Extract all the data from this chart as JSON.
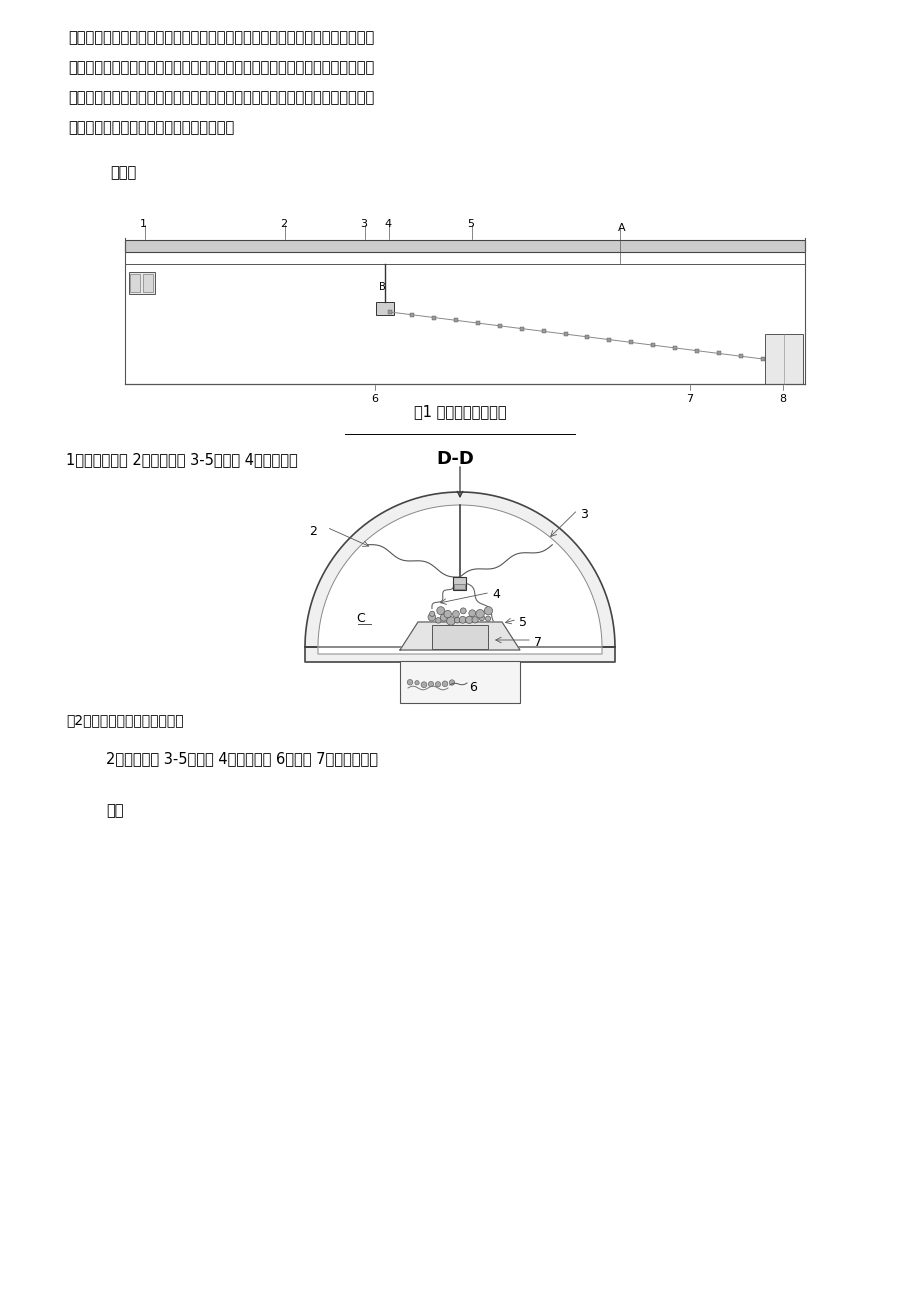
{
  "background_color": "#ffffff",
  "page_width": 9.2,
  "page_height": 13.02,
  "text_color": "#000000",
  "paragraph1": "直线上，从而保证出煤时落煤准确。气动单轨吊不仅可以运输材料、设备，还可",
  "paragraph2": "以辅助综掘机二运出货。同时，打运和综掘机二运出货互不干涉，可以同步运行",
  "paragraph3": "气动单轨吊安装一次成型，无需二次安装。单轨吊能一机多用，提高了单轨吊的",
  "paragraph4": "利用价值，充分发挥了单轨吊的经济价值。",
  "rutu_text": "如图：",
  "fig1_caption": "图1 气动单轨吊示意图",
  "fig1_legend": "1、气动单轨吊 2、单轨吊梁 3-5、锚链 4、滑行小车",
  "fig2_caption": "图2综掘机二运和单轨吊剖面图",
  "fig2_legend": "2、单轨吊梁 3-5、锚链 4、滑行小车 6、刮板 7、综掘机二运",
  "zongjie": "总结"
}
